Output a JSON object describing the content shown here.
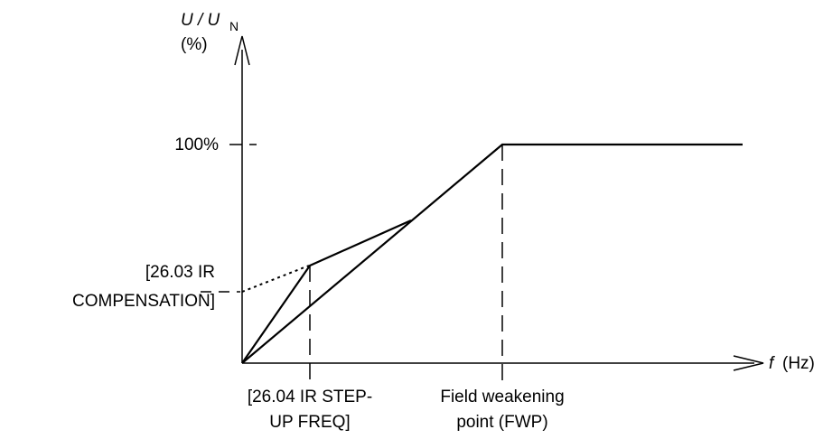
{
  "y_axis": {
    "label_main": "U / U",
    "label_sub": "N",
    "unit": "(%)"
  },
  "x_axis": {
    "symbol": "f",
    "unit": "(Hz)"
  },
  "y_markers": {
    "full_voltage": "100%",
    "ir_comp_line1": "[26.03 IR",
    "ir_comp_line2": "COMPENSATION]"
  },
  "x_markers": {
    "step_up_line1": "[26.04 IR STEP-",
    "step_up_line2": "UP FREQ]",
    "fwp_line1": "Field weakening",
    "fwp_line2": "point (FWP)"
  },
  "colors": {
    "ink": "#000000",
    "background": "#ffffff"
  }
}
